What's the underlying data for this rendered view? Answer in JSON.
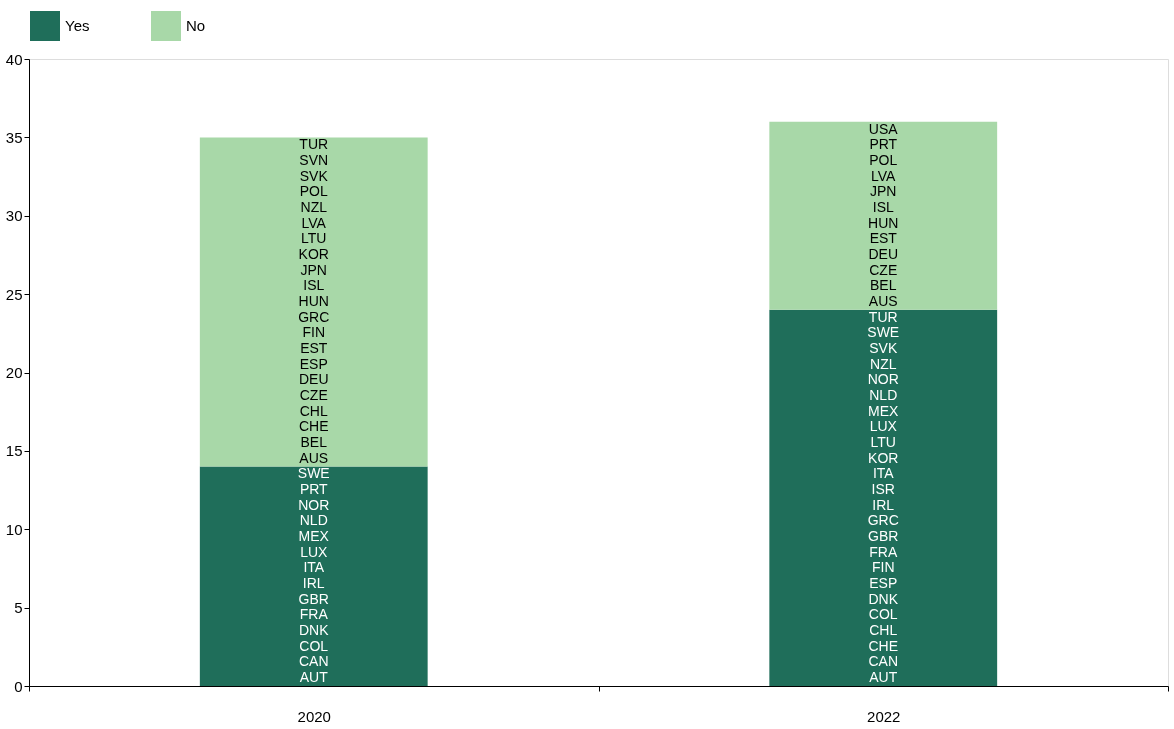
{
  "chart_data": {
    "type": "bar",
    "stacked": true,
    "categories": [
      "2020",
      "2022"
    ],
    "series": [
      {
        "name": "Yes",
        "color": "#1f6e5a",
        "values": [
          14,
          24
        ]
      },
      {
        "name": "No",
        "color": "#a8d8a8",
        "values": [
          21,
          12
        ]
      }
    ],
    "ylim": [
      0,
      40
    ],
    "yticks": [
      0,
      5,
      10,
      15,
      20,
      25,
      30,
      35,
      40
    ],
    "grid": false,
    "legend": "top",
    "annotations": [
      "AUT",
      "CAN",
      "COL",
      "DNK",
      "FRA",
      "GBR",
      "IRL",
      "ITA",
      "LUX",
      "MEX",
      "NLD",
      "NOR",
      "PRT",
      "SWE",
      "AUS",
      "BEL",
      "CHE",
      "CHL",
      "CZE",
      "DEU",
      "ESP",
      "EST",
      "FIN",
      "GRC",
      "HUN",
      "ISL",
      "JPN",
      "KOR",
      "LTU",
      "LVA",
      "NZL",
      "POL",
      "SVK",
      "SVN",
      "TUR",
      "AUT",
      "CAN",
      "CHE",
      "CHL",
      "COL",
      "DNK",
      "ESP",
      "FIN",
      "FRA",
      "GBR",
      "GRC",
      "IRL",
      "ISR",
      "ITA",
      "KOR",
      "LTU",
      "LUX",
      "MEX",
      "NLD",
      "NOR",
      "NZL",
      "SVK",
      "SWE",
      "TUR",
      "AUS",
      "BEL",
      "CZE",
      "DEU",
      "EST",
      "HUN",
      "ISL",
      "JPN",
      "LVA",
      "POL",
      "PRT",
      "USA"
    ]
  }
}
